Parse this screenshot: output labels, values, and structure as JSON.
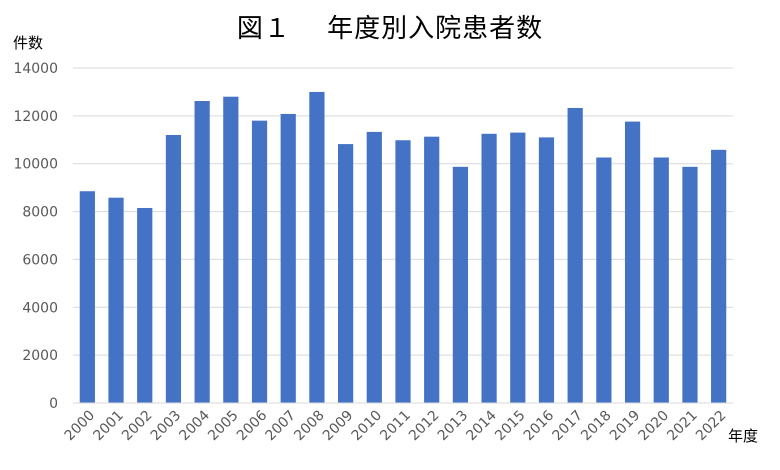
{
  "chart_data": {
    "type": "bar",
    "title": "図１　 年度別入院患者数",
    "ylabel": "件数",
    "xlabel": "年度",
    "ylim": [
      0,
      14000
    ],
    "yticks": [
      0,
      2000,
      4000,
      6000,
      8000,
      10000,
      12000,
      14000
    ],
    "grid": true,
    "legend": "none",
    "bar_color": "#4472C4",
    "grid_color": "#D9D9D9",
    "categories": [
      "2000",
      "2001",
      "2002",
      "2003",
      "2004",
      "2005",
      "2006",
      "2007",
      "2008",
      "2009",
      "2010",
      "2011",
      "2012",
      "2013",
      "2014",
      "2015",
      "2016",
      "2017",
      "2018",
      "2019",
      "2020",
      "2021",
      "2022"
    ],
    "values": [
      8850,
      8580,
      8150,
      11200,
      12620,
      12800,
      11800,
      12080,
      13000,
      10820,
      11330,
      10980,
      11130,
      9870,
      11250,
      11300,
      11100,
      12330,
      10260,
      11760,
      10260,
      9870,
      10580
    ]
  }
}
